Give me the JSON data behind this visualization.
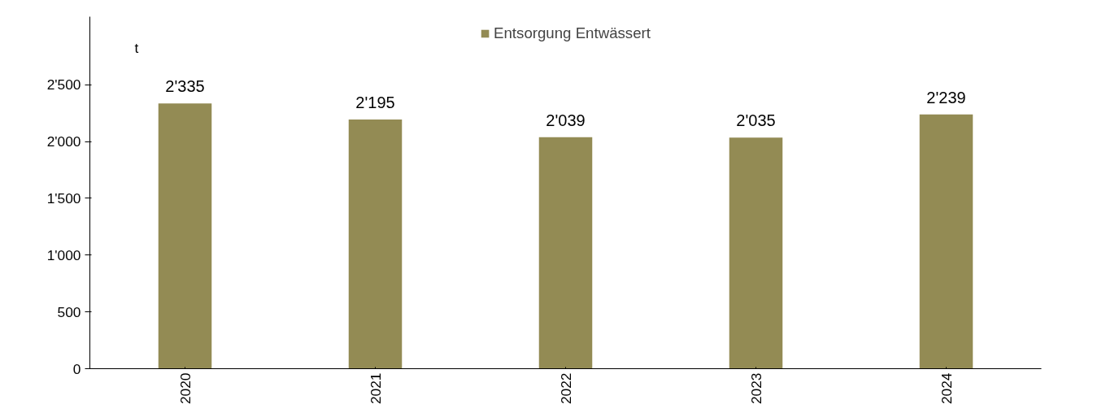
{
  "chart_data": {
    "type": "bar",
    "ylabel": "t",
    "categories": [
      "2020",
      "2021",
      "2022",
      "2023",
      "2024"
    ],
    "series": [
      {
        "name": "Entsorgung Entwässert",
        "color": "#938b54",
        "values": [
          2335,
          2195,
          2039,
          2035,
          2239
        ],
        "value_labels": [
          "2'335",
          "2'195",
          "2'039",
          "2'035",
          "2'239"
        ]
      }
    ],
    "ylim": [
      0,
      3100
    ],
    "yticks": [
      0,
      {
        "value": 500,
        "label": "500"
      },
      {
        "value": 1000,
        "label": "1'000"
      },
      {
        "value": 1500,
        "label": "1'500"
      },
      {
        "value": 2000,
        "label": "2'000"
      },
      {
        "value": 2500,
        "label": "2'500"
      }
    ],
    "grid": false,
    "legend": "top"
  }
}
